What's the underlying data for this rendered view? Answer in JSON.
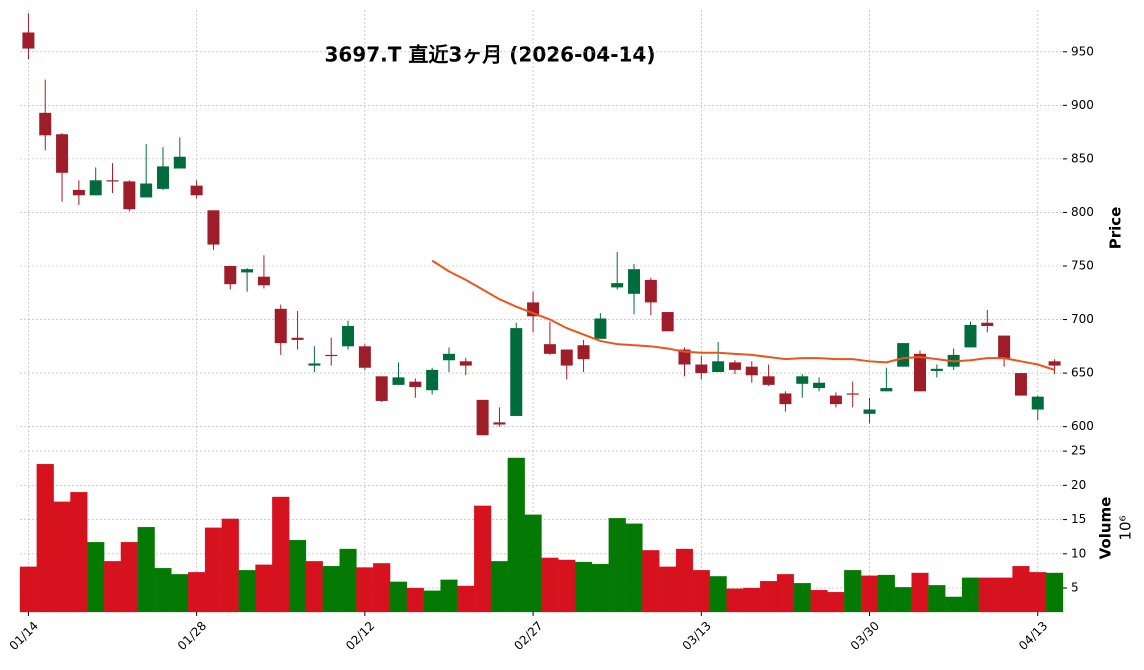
{
  "chart_data": {
    "type": "candlestick",
    "title": "3697.T  直近3ヶ月  (2026-04-14)",
    "ylabel": "Price",
    "y2label": "Volume",
    "y2_offset": "10⁶",
    "categories": [
      "01/14",
      null,
      null,
      null,
      null,
      null,
      null,
      null,
      null,
      null,
      "01/28",
      null,
      null,
      null,
      null,
      null,
      null,
      null,
      null,
      null,
      "02/12",
      null,
      null,
      null,
      null,
      null,
      null,
      null,
      null,
      null,
      "02/27",
      null,
      null,
      null,
      null,
      null,
      null,
      null,
      null,
      null,
      "03/13",
      null,
      null,
      null,
      null,
      null,
      null,
      null,
      null,
      null,
      "03/30",
      null,
      null,
      null,
      null,
      null,
      null,
      null,
      null,
      null,
      "04/13",
      null
    ],
    "open": [
      968,
      893,
      873,
      821,
      816,
      830,
      829,
      814,
      822,
      841,
      825,
      802,
      750,
      744,
      740,
      710,
      683,
      657,
      667,
      675,
      675,
      647,
      639,
      642,
      634,
      662,
      661,
      625,
      604,
      610,
      716,
      677,
      672,
      676,
      682,
      730,
      724,
      737,
      707,
      672,
      658,
      651,
      660,
      656,
      647,
      631,
      640,
      636,
      629,
      631,
      612,
      633,
      656,
      668,
      652,
      656,
      674,
      697,
      685,
      650,
      616,
      661
    ],
    "high": [
      986,
      924,
      874,
      830,
      842,
      846,
      830,
      864,
      861,
      870,
      830,
      802,
      750,
      748,
      760,
      714,
      708,
      675,
      683,
      699,
      677,
      647,
      660,
      645,
      655,
      674,
      664,
      625,
      618,
      697,
      726,
      698,
      672,
      681,
      706,
      763,
      752,
      739,
      707,
      674,
      666,
      679,
      662,
      661,
      658,
      633,
      649,
      646,
      632,
      642,
      627,
      655,
      678,
      671,
      658,
      673,
      698,
      709,
      685,
      650,
      629,
      663
    ],
    "low": [
      943,
      858,
      810,
      807,
      816,
      818,
      801,
      814,
      821,
      841,
      813,
      765,
      728,
      726,
      729,
      667,
      672,
      651,
      657,
      672,
      653,
      623,
      639,
      627,
      630,
      651,
      648,
      592,
      600,
      610,
      688,
      667,
      644,
      651,
      682,
      728,
      705,
      704,
      689,
      647,
      644,
      651,
      649,
      641,
      638,
      614,
      627,
      633,
      618,
      618,
      603,
      633,
      656,
      633,
      646,
      653,
      674,
      688,
      656,
      629,
      606,
      649
    ],
    "close": [
      953,
      872,
      837,
      816,
      830,
      829,
      803,
      827,
      843,
      852,
      816,
      770,
      733,
      747,
      732,
      678,
      681,
      659,
      666,
      694,
      655,
      624,
      646,
      637,
      653,
      668,
      657,
      592,
      602,
      692,
      703,
      668,
      657,
      663,
      701,
      734,
      747,
      716,
      689,
      658,
      650,
      661,
      653,
      648,
      639,
      621,
      647,
      641,
      621,
      630,
      616,
      636,
      678,
      633,
      654,
      667,
      695,
      694,
      664,
      629,
      628,
      657
    ],
    "volume": [
      8.1,
      23.1,
      17.6,
      19,
      11.7,
      8.9,
      11.7,
      13.9,
      7.9,
      7,
      7.3,
      13.8,
      15.1,
      7.6,
      8.4,
      18.3,
      12,
      8.9,
      8.2,
      10.7,
      8,
      8.6,
      5.9,
      5,
      4.6,
      6.2,
      5.3,
      17,
      8.9,
      24,
      15.7,
      9.4,
      9.1,
      8.8,
      8.5,
      15.2,
      14.4,
      10.5,
      8.1,
      10.7,
      7.6,
      6.7,
      4.9,
      5,
      6,
      7,
      5.7,
      4.7,
      4.4,
      7.6,
      6.8,
      6.9,
      5.1,
      7.2,
      5.4,
      3.7,
      6.5,
      6.5,
      6.5,
      8.2,
      7.3,
      7.2
    ],
    "ma_values": [
      null,
      null,
      null,
      null,
      null,
      null,
      null,
      null,
      null,
      null,
      null,
      null,
      null,
      null,
      null,
      null,
      null,
      null,
      null,
      null,
      null,
      null,
      null,
      null,
      755,
      745,
      737,
      728,
      719,
      712,
      706,
      700,
      692,
      686,
      680,
      677,
      676,
      675,
      673,
      670,
      669,
      669,
      668,
      667,
      665,
      663,
      664,
      664,
      663,
      663,
      661,
      660,
      664,
      665,
      663,
      661,
      662,
      664,
      664,
      661,
      658,
      653
    ],
    "ma_color": "#e8561c",
    "up_color": "#006b3c",
    "down_color": "#9e1d28",
    "volume_up_color": "#047a04",
    "volume_down_color": "#d5121e",
    "ylim": [
      581,
      989
    ],
    "yticks": [
      600,
      650,
      700,
      750,
      800,
      850,
      900,
      950
    ],
    "y2lim": [
      1.5,
      25.6
    ],
    "y2ticks": [
      5,
      10,
      15,
      20,
      25
    ],
    "grid": true
  }
}
